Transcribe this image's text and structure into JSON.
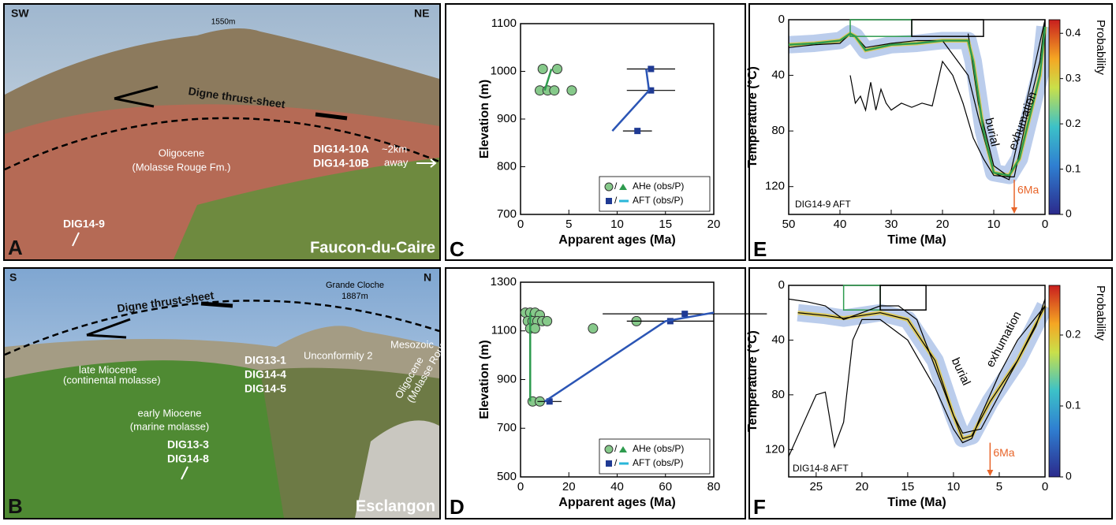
{
  "photo_a": {
    "panel": "A",
    "left": "SW",
    "right": "NE",
    "peak": "1550m",
    "thrust": "Digne thrust-sheet",
    "unit": "Oligocene",
    "unit_sub": "(Molasse Rouge Fm.)",
    "sample_1": "DIG14-10A",
    "sample_2": "DIG14-10B",
    "distance": "~2km",
    "distance_2": "away",
    "sample_3": "DIG14-9",
    "place": "Faucon-du-Caire"
  },
  "photo_b": {
    "panel": "B",
    "left": "S",
    "right": "N",
    "peak": "Grande Cloche",
    "peak_2": "1887m",
    "thrust": "Digne thrust-sheet",
    "unit_1": "late Miocene",
    "unit_1_sub": "(continental molasse)",
    "unconformity": "Unconformity 2",
    "unit_2": "Mesozoic",
    "unit_3": "early Miocene",
    "unit_3_sub": "(marine molasse)",
    "sample_1": "DIG13-1",
    "sample_2": "DIG14-4",
    "sample_3": "DIG14-5",
    "unit_4": "Oligocene",
    "unit_4_sub": "(Molasse Rouge Fm.)",
    "sample_4": "DIG13-3",
    "sample_5": "DIG14-8",
    "place": "Esclangon"
  },
  "chart_data": [
    {
      "type": "scatter",
      "panel": "C",
      "xlabel": "Apparent ages (Ma)",
      "ylabel": "Elevation (m)",
      "xlim": [
        0,
        20
      ],
      "xticks": [
        0,
        5,
        10,
        15,
        20
      ],
      "ylim": [
        700,
        1100
      ],
      "yticks": [
        700,
        800,
        900,
        1000,
        1100
      ],
      "legend": "lower right",
      "series": [
        {
          "name": "AHe (obs/P)",
          "color": "#86c98a",
          "marker": "circle",
          "x": [
            2.3,
            3.8,
            2.0,
            2.8,
            3.5,
            5.3
          ],
          "values": [
            1005,
            1005,
            960,
            960,
            960,
            960
          ]
        },
        {
          "color": "#2e9b4e",
          "marker": "line",
          "x": [
            3.2,
            2.5
          ],
          "values": [
            1005,
            960
          ]
        },
        {
          "name": "AFT (obs/P)",
          "color": "#1f3a93",
          "marker": "square",
          "x": [
            13.5,
            13.5,
            12.1
          ],
          "values": [
            1005,
            960,
            875
          ],
          "xerr": [
            2.5,
            2.5,
            1.5
          ]
        },
        {
          "color": "#2b55b5",
          "marker": "line",
          "x": [
            13.0,
            13.3,
            9.5
          ],
          "values": [
            1005,
            960,
            875
          ]
        }
      ]
    },
    {
      "type": "scatter",
      "panel": "D",
      "xlabel": "Apparent ages (Ma)",
      "ylabel": "Elevation (m)",
      "xlim": [
        0,
        80
      ],
      "xticks": [
        0,
        20,
        40,
        60,
        80
      ],
      "ylim": [
        500,
        1300
      ],
      "yticks": [
        500,
        700,
        900,
        1100,
        1300
      ],
      "legend": "lower right",
      "series": [
        {
          "name": "AHe (obs/P)",
          "color": "#86c98a",
          "marker": "circle",
          "x": [
            2,
            4,
            6,
            8,
            3,
            5,
            7,
            9,
            11,
            4,
            6,
            30,
            48,
            5,
            8
          ],
          "values": [
            1175,
            1175,
            1175,
            1165,
            1140,
            1140,
            1140,
            1140,
            1140,
            1110,
            1110,
            1110,
            1140,
            810,
            810
          ]
        },
        {
          "color": "#2e9b4e",
          "marker": "line",
          "x": [
            4,
            4,
            4
          ],
          "values": [
            1175,
            1140,
            810
          ]
        },
        {
          "name": "AFT (obs/P)",
          "color": "#1f3a93",
          "marker": "square",
          "x": [
            68,
            62,
            12
          ],
          "values": [
            1170,
            1140,
            810
          ],
          "xerr": [
            34,
            18,
            5
          ]
        },
        {
          "color": "#2b55b5",
          "marker": "line",
          "x": [
            80,
            60,
            10
          ],
          "values": [
            1175,
            1140,
            810
          ]
        }
      ]
    },
    {
      "type": "path",
      "panel": "E",
      "xlabel": "Time (Ma)",
      "ylabel": "Temperature (°C)",
      "xlim": [
        50,
        0
      ],
      "xticks": [
        50,
        40,
        30,
        20,
        10,
        0
      ],
      "ylim": [
        140,
        0
      ],
      "yticks": [
        0,
        40,
        80,
        120
      ],
      "colorbar": {
        "label": "Probability",
        "lim": [
          0,
          0.43
        ],
        "ticks": [
          0,
          0.1,
          0.2,
          0.3,
          0.4
        ]
      },
      "marker_x": {
        "value": 6,
        "label": "6Ma"
      },
      "annotations": [
        "burial",
        "exhumation",
        "DIG14-9 AFT"
      ],
      "boxes": [
        {
          "x": [
            38,
            26
          ],
          "y": [
            0,
            12
          ],
          "color": "#2e9b4e"
        },
        {
          "x": [
            26,
            12
          ],
          "y": [
            0,
            12
          ],
          "color": "#000000"
        }
      ],
      "series": [
        {
          "color": "#000000",
          "x": [
            50,
            45,
            40,
            38,
            37,
            35,
            30,
            25,
            20,
            15,
            13,
            10,
            7,
            0
          ],
          "values": [
            20,
            18,
            17,
            10,
            12,
            20,
            17,
            15,
            15,
            40,
            70,
            110,
            115,
            0
          ]
        },
        {
          "color": "#000000",
          "x": [
            38,
            37,
            36,
            35,
            34,
            33,
            32,
            31,
            30,
            28,
            26,
            24,
            22,
            20,
            18,
            16,
            14,
            12,
            10,
            7
          ],
          "values": [
            40,
            60,
            55,
            65,
            45,
            65,
            50,
            60,
            65,
            60,
            63,
            60,
            62,
            30,
            40,
            60,
            85,
            100,
            112,
            113
          ]
        },
        {
          "color": "#000000",
          "x": [
            15,
            13,
            10,
            7,
            6,
            3,
            1,
            0
          ],
          "values": [
            10,
            60,
            105,
            113,
            113,
            60,
            30,
            0
          ]
        },
        {
          "color": "#2e9b4e",
          "x": [
            50,
            45,
            40,
            38,
            37,
            35,
            30,
            25,
            20,
            15,
            14,
            12,
            10,
            7,
            5,
            3,
            1,
            0
          ],
          "values": [
            18,
            17,
            15,
            10,
            12,
            22,
            18,
            17,
            15,
            15,
            30,
            80,
            110,
            112,
            100,
            70,
            40,
            5
          ]
        }
      ]
    },
    {
      "type": "path",
      "panel": "F",
      "xlabel": "Time (Ma)",
      "ylabel": "Temperature (°C)",
      "xlim": [
        28,
        0
      ],
      "xticks": [
        25,
        20,
        15,
        10,
        5,
        0
      ],
      "ylim": [
        140,
        0
      ],
      "yticks": [
        0,
        40,
        80,
        120
      ],
      "colorbar": {
        "label": "Probability",
        "lim": [
          0,
          0.27
        ],
        "ticks": [
          0,
          0.1,
          0.2
        ]
      },
      "marker_x": {
        "value": 6,
        "label": "6Ma"
      },
      "annotations": [
        "burial",
        "exhumation",
        "DIG14-8 AFT"
      ],
      "boxes": [
        {
          "x": [
            22,
            18
          ],
          "y": [
            0,
            18
          ],
          "color": "#2e9b4e"
        },
        {
          "x": [
            18,
            13
          ],
          "y": [
            0,
            18
          ],
          "color": "#000000"
        }
      ],
      "series": [
        {
          "color": "#000000",
          "x": [
            28,
            26,
            24,
            23,
            22,
            20,
            18,
            16,
            14,
            12,
            10,
            9,
            7,
            5,
            3,
            1,
            0
          ],
          "values": [
            10,
            12,
            15,
            20,
            25,
            20,
            15,
            15,
            25,
            60,
            95,
            108,
            105,
            80,
            55,
            30,
            10
          ]
        },
        {
          "color": "#000000",
          "x": [
            28,
            25,
            24,
            23,
            22,
            21,
            20,
            18,
            15,
            12,
            10,
            9,
            8,
            7,
            5,
            3,
            0
          ],
          "values": [
            125,
            80,
            78,
            118,
            100,
            40,
            25,
            25,
            40,
            75,
            105,
            115,
            112,
            95,
            65,
            40,
            15
          ]
        },
        {
          "color": "#000000",
          "x": [
            27,
            24,
            22,
            20,
            18,
            15,
            12,
            10,
            9,
            8,
            6,
            3,
            0
          ],
          "values": [
            20,
            22,
            24,
            22,
            20,
            25,
            55,
            95,
            112,
            110,
            85,
            55,
            15
          ]
        }
      ]
    }
  ]
}
